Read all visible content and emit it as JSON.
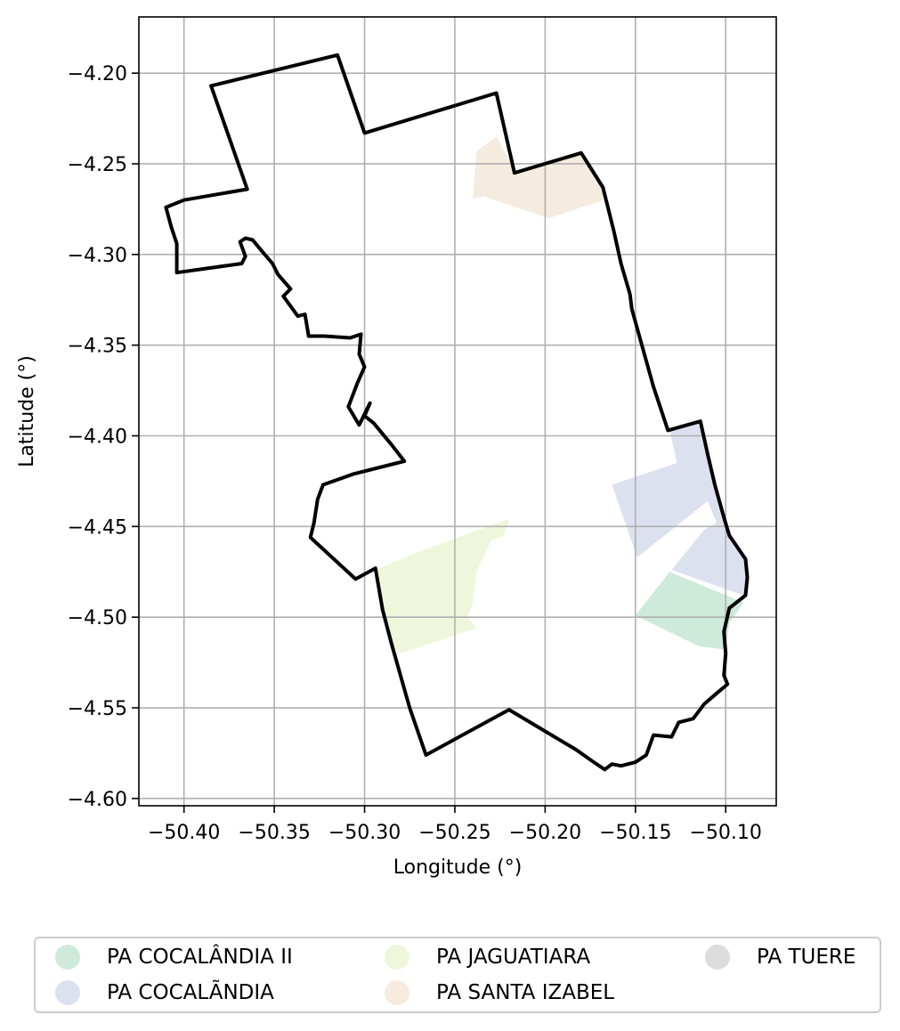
{
  "chart_data": {
    "type": "map",
    "xlabel": "Longitude (°)",
    "ylabel": "Latitude (°)",
    "xlim": [
      -50.425,
      -50.072
    ],
    "ylim": [
      -4.604,
      -4.169
    ],
    "grid": true,
    "x_ticks": [
      -50.4,
      -50.35,
      -50.3,
      -50.25,
      -50.2,
      -50.15,
      -50.1
    ],
    "x_tick_labels": [
      "−50.40",
      "−50.35",
      "−50.30",
      "−50.25",
      "−50.20",
      "−50.15",
      "−50.10"
    ],
    "y_ticks": [
      -4.2,
      -4.25,
      -4.3,
      -4.35,
      -4.4,
      -4.45,
      -4.5,
      -4.55,
      -4.6
    ],
    "y_tick_labels": [
      "−4.20",
      "−4.25",
      "−4.30",
      "−4.35",
      "−4.40",
      "−4.45",
      "−4.50",
      "−4.55",
      "−4.60"
    ],
    "legend_placement": "bottom, outside",
    "boundary": {
      "color": "#000000",
      "coords": [
        [
          -50.385,
          -4.207
        ],
        [
          -50.315,
          -4.19
        ],
        [
          -50.3,
          -4.233
        ],
        [
          -50.227,
          -4.211
        ],
        [
          -50.217,
          -4.255
        ],
        [
          -50.18,
          -4.244
        ],
        [
          -50.168,
          -4.263
        ],
        [
          -50.162,
          -4.287
        ],
        [
          -50.158,
          -4.305
        ],
        [
          -50.153,
          -4.322
        ],
        [
          -50.152,
          -4.33
        ],
        [
          -50.147,
          -4.348
        ],
        [
          -50.14,
          -4.373
        ],
        [
          -50.136,
          -4.385
        ],
        [
          -50.132,
          -4.397
        ],
        [
          -50.114,
          -4.392
        ],
        [
          -50.11,
          -4.41
        ],
        [
          -50.106,
          -4.427
        ],
        [
          -50.101,
          -4.445
        ],
        [
          -50.098,
          -4.455
        ],
        [
          -50.089,
          -4.468
        ],
        [
          -50.088,
          -4.478
        ],
        [
          -50.089,
          -4.488
        ],
        [
          -50.098,
          -4.495
        ],
        [
          -50.101,
          -4.508
        ],
        [
          -50.1,
          -4.52
        ],
        [
          -50.101,
          -4.532
        ],
        [
          -50.099,
          -4.537
        ],
        [
          -50.105,
          -4.542
        ],
        [
          -50.112,
          -4.548
        ],
        [
          -50.118,
          -4.556
        ],
        [
          -50.126,
          -4.558
        ],
        [
          -50.13,
          -4.566
        ],
        [
          -50.14,
          -4.565
        ],
        [
          -50.144,
          -4.576
        ],
        [
          -50.15,
          -4.58
        ],
        [
          -50.158,
          -4.582
        ],
        [
          -50.163,
          -4.581
        ],
        [
          -50.167,
          -4.584
        ],
        [
          -50.173,
          -4.58
        ],
        [
          -50.183,
          -4.573
        ],
        [
          -50.22,
          -4.551
        ],
        [
          -50.266,
          -4.576
        ],
        [
          -50.275,
          -4.55
        ],
        [
          -50.285,
          -4.515
        ],
        [
          -50.29,
          -4.496
        ],
        [
          -50.294,
          -4.473
        ],
        [
          -50.305,
          -4.479
        ],
        [
          -50.33,
          -4.456
        ],
        [
          -50.328,
          -4.448
        ],
        [
          -50.326,
          -4.435
        ],
        [
          -50.323,
          -4.427
        ],
        [
          -50.306,
          -4.421
        ],
        [
          -50.278,
          -4.414
        ],
        [
          -50.285,
          -4.405
        ],
        [
          -50.295,
          -4.393
        ],
        [
          -50.3,
          -4.389
        ],
        [
          -50.297,
          -4.382
        ],
        [
          -50.303,
          -4.394
        ],
        [
          -50.309,
          -4.384
        ],
        [
          -50.304,
          -4.371
        ],
        [
          -50.3,
          -4.362
        ],
        [
          -50.303,
          -4.355
        ],
        [
          -50.302,
          -4.344
        ],
        [
          -50.308,
          -4.346
        ],
        [
          -50.322,
          -4.345
        ],
        [
          -50.331,
          -4.345
        ],
        [
          -50.333,
          -4.333
        ],
        [
          -50.337,
          -4.334
        ],
        [
          -50.345,
          -4.323
        ],
        [
          -50.341,
          -4.319
        ],
        [
          -50.348,
          -4.311
        ],
        [
          -50.351,
          -4.305
        ],
        [
          -50.357,
          -4.298
        ],
        [
          -50.362,
          -4.292
        ],
        [
          -50.366,
          -4.291
        ],
        [
          -50.369,
          -4.293
        ],
        [
          -50.366,
          -4.301
        ],
        [
          -50.368,
          -4.305
        ],
        [
          -50.404,
          -4.31
        ],
        [
          -50.404,
          -4.302
        ],
        [
          -50.404,
          -4.294
        ],
        [
          -50.407,
          -4.285
        ],
        [
          -50.41,
          -4.274
        ],
        [
          -50.4,
          -4.27
        ],
        [
          -50.365,
          -4.264
        ],
        [
          -50.385,
          -4.207
        ]
      ]
    },
    "regions": [
      {
        "name": "PA COCALÂNDIA II",
        "color": "#cdeadb",
        "coords": [
          [
            -50.15,
            -4.499
          ],
          [
            -50.131,
            -4.475
          ],
          [
            -50.09,
            -4.492
          ],
          [
            -50.098,
            -4.503
          ],
          [
            -50.1,
            -4.518
          ],
          [
            -50.115,
            -4.516
          ],
          [
            -50.15,
            -4.499
          ]
        ]
      },
      {
        "name": "PA COCALÃNDIA",
        "color": "#dce1f0",
        "coords": [
          [
            -50.163,
            -4.427
          ],
          [
            -50.127,
            -4.415
          ],
          [
            -50.131,
            -4.397
          ],
          [
            -50.114,
            -4.392
          ],
          [
            -50.101,
            -4.445
          ],
          [
            -50.098,
            -4.455
          ],
          [
            -50.089,
            -4.468
          ],
          [
            -50.088,
            -4.478
          ],
          [
            -50.09,
            -4.488
          ],
          [
            -50.13,
            -4.474
          ],
          [
            -50.112,
            -4.452
          ],
          [
            -50.105,
            -4.448
          ],
          [
            -50.11,
            -4.436
          ],
          [
            -50.149,
            -4.467
          ],
          [
            -50.163,
            -4.427
          ]
        ]
      },
      {
        "name": "PA JAGUATIARA",
        "color": "#eef7db",
        "coords": [
          [
            -50.294,
            -4.474
          ],
          [
            -50.27,
            -4.464
          ],
          [
            -50.24,
            -4.453
          ],
          [
            -50.22,
            -4.446
          ],
          [
            -50.223,
            -4.455
          ],
          [
            -50.23,
            -4.458
          ],
          [
            -50.233,
            -4.465
          ],
          [
            -50.238,
            -4.475
          ],
          [
            -50.24,
            -4.492
          ],
          [
            -50.243,
            -4.5
          ],
          [
            -50.238,
            -4.506
          ],
          [
            -50.28,
            -4.52
          ],
          [
            -50.286,
            -4.516
          ],
          [
            -50.29,
            -4.497
          ],
          [
            -50.294,
            -4.474
          ]
        ]
      },
      {
        "name": "PA SANTA IZABEL",
        "color": "#f5ebde",
        "coords": [
          [
            -50.238,
            -4.243
          ],
          [
            -50.227,
            -4.235
          ],
          [
            -50.216,
            -4.255
          ],
          [
            -50.18,
            -4.245
          ],
          [
            -50.168,
            -4.262
          ],
          [
            -50.168,
            -4.27
          ],
          [
            -50.198,
            -4.28
          ],
          [
            -50.21,
            -4.276
          ],
          [
            -50.225,
            -4.271
          ],
          [
            -50.234,
            -4.268
          ],
          [
            -50.24,
            -4.269
          ],
          [
            -50.238,
            -4.243
          ]
        ]
      },
      {
        "name": "PA TUERE",
        "color": "#dcdcdc",
        "coords": []
      }
    ]
  }
}
